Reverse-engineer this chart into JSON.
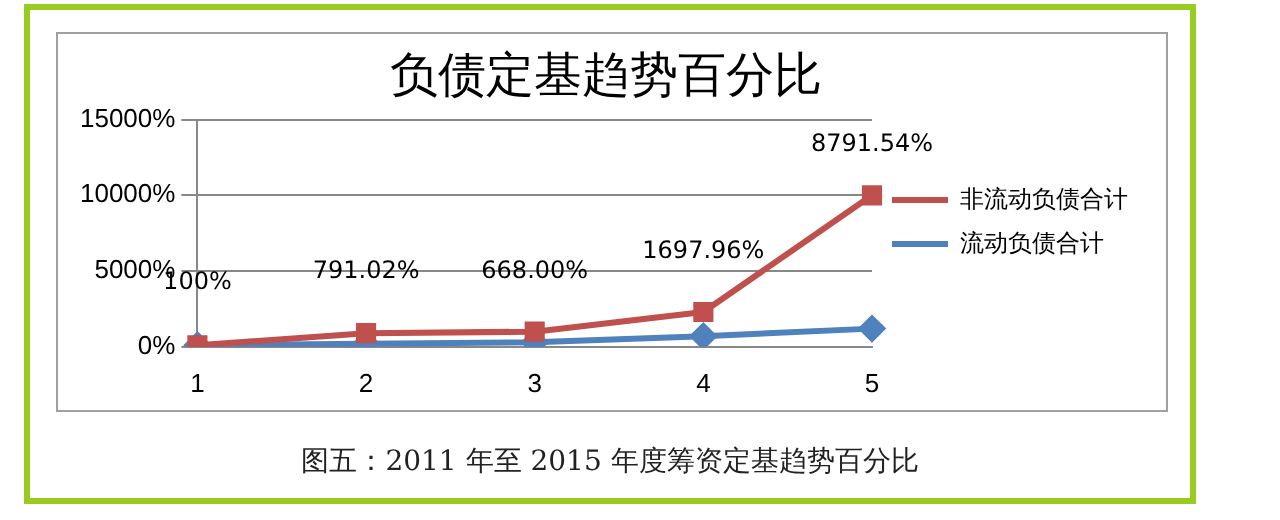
{
  "chart_data": {
    "type": "line",
    "title": "负债定基趋势百分比",
    "categories": [
      "1",
      "2",
      "3",
      "4",
      "5"
    ],
    "series": [
      {
        "name": "非流动负债合计",
        "color": "#c0504d",
        "marker": "square",
        "values": [
          100,
          900,
          1000,
          2300,
          10000
        ]
      },
      {
        "name": "流动负债合计",
        "color": "#4f81bd",
        "marker": "diamond",
        "values": [
          100,
          200,
          300,
          700,
          1200
        ]
      }
    ],
    "ylim": [
      0,
      15000
    ],
    "yticks": [
      {
        "value": 0,
        "label": "0%"
      },
      {
        "value": 5000,
        "label": "5000%"
      },
      {
        "value": 10000,
        "label": "10000%"
      },
      {
        "value": 15000,
        "label": "15000%"
      }
    ],
    "grid": "y",
    "legend": "right",
    "annotations": [
      "100%",
      "791.02%",
      "668.00%",
      "1697.96%",
      "8791.54%",
      "图五：2011 年至 2015 年度筹资定基趋势百分比"
    ]
  }
}
